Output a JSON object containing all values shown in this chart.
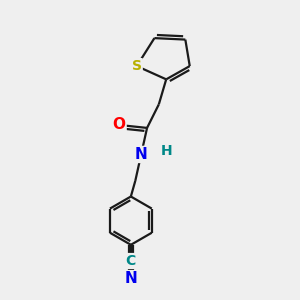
{
  "bg_color": "#efefef",
  "bond_color": "#1a1a1a",
  "S_color": "#b8b000",
  "O_color": "#ff0000",
  "N_color": "#0000ee",
  "C_nitrile_color": "#008888",
  "H_color": "#008888",
  "bond_width": 1.6,
  "font_size_atom": 11,
  "fig_width": 3.0,
  "fig_height": 3.0,
  "dpi": 100,
  "xlim": [
    0,
    10
  ],
  "ylim": [
    0,
    10
  ]
}
